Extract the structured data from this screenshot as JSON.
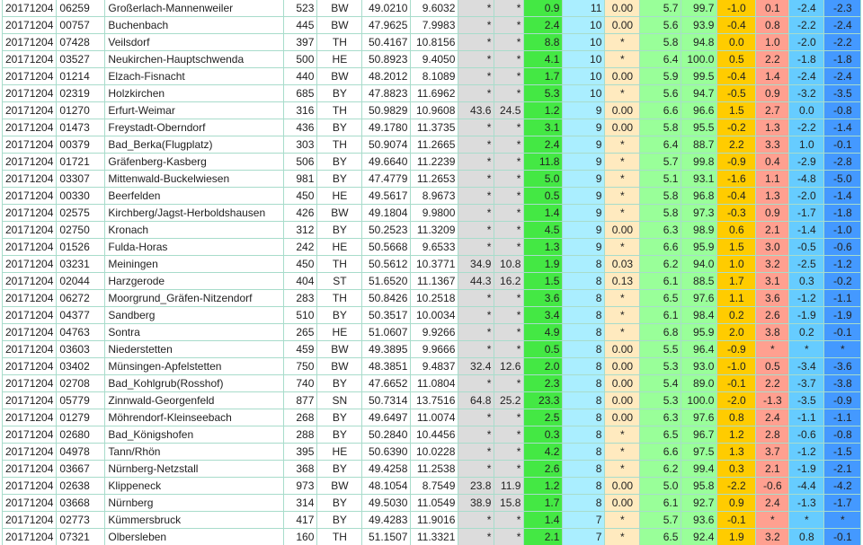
{
  "colors": {
    "gray": "#dcdcdc",
    "green": "#44e844",
    "lightblue": "#aaeeff",
    "yellow": "#ffeabf",
    "lightgreen": "#99ff99",
    "orange": "#ffcc00",
    "salmon": "#ffa090",
    "blue1": "#66ccff",
    "blue2": "#4499ff",
    "border": "#a8dccb"
  },
  "rows": [
    [
      "20171204",
      "06259",
      "Großerlach-Mannenweiler",
      "523",
      "BW",
      "49.0210",
      "9.6032",
      "*",
      "*",
      "0.9",
      "11",
      "0.00",
      "5.7",
      "99.7",
      "-1.0",
      "0.1",
      "-2.4",
      "-2.3"
    ],
    [
      "20171204",
      "00757",
      "Buchenbach",
      "445",
      "BW",
      "47.9625",
      "7.9983",
      "*",
      "*",
      "2.4",
      "10",
      "0.00",
      "5.6",
      "93.9",
      "-0.4",
      "0.8",
      "-2.2",
      "-2.4"
    ],
    [
      "20171204",
      "07428",
      "Veilsdorf",
      "397",
      "TH",
      "50.4167",
      "10.8156",
      "*",
      "*",
      "8.8",
      "10",
      "*",
      "5.8",
      "94.8",
      "0.0",
      "1.0",
      "-2.0",
      "-2.2"
    ],
    [
      "20171204",
      "03527",
      "Neukirchen-Hauptschwenda",
      "500",
      "HE",
      "50.8923",
      "9.4050",
      "*",
      "*",
      "4.1",
      "10",
      "*",
      "6.4",
      "100.0",
      "0.5",
      "2.2",
      "-1.8",
      "-1.8"
    ],
    [
      "20171204",
      "01214",
      "Elzach-Fisnacht",
      "440",
      "BW",
      "48.2012",
      "8.1089",
      "*",
      "*",
      "1.7",
      "10",
      "0.00",
      "5.9",
      "99.5",
      "-0.4",
      "1.4",
      "-2.4",
      "-2.4"
    ],
    [
      "20171204",
      "02319",
      "Holzkirchen",
      "685",
      "BY",
      "47.8823",
      "11.6962",
      "*",
      "*",
      "5.3",
      "10",
      "*",
      "5.6",
      "94.7",
      "-0.5",
      "0.9",
      "-3.2",
      "-3.5"
    ],
    [
      "20171204",
      "01270",
      "Erfurt-Weimar",
      "316",
      "TH",
      "50.9829",
      "10.9608",
      "43.6",
      "24.5",
      "1.2",
      "9",
      "0.00",
      "6.6",
      "96.6",
      "1.5",
      "2.7",
      "0.0",
      "-0.8"
    ],
    [
      "20171204",
      "01473",
      "Freystadt-Oberndorf",
      "436",
      "BY",
      "49.1780",
      "11.3735",
      "*",
      "*",
      "3.1",
      "9",
      "0.00",
      "5.8",
      "95.5",
      "-0.2",
      "1.3",
      "-2.2",
      "-1.4"
    ],
    [
      "20171204",
      "00379",
      "Bad_Berka(Flugplatz)",
      "303",
      "TH",
      "50.9074",
      "11.2665",
      "*",
      "*",
      "2.4",
      "9",
      "*",
      "6.4",
      "88.7",
      "2.2",
      "3.3",
      "1.0",
      "-0.1"
    ],
    [
      "20171204",
      "01721",
      "Gräfenberg-Kasberg",
      "506",
      "BY",
      "49.6640",
      "11.2239",
      "*",
      "*",
      "11.8",
      "9",
      "*",
      "5.7",
      "99.8",
      "-0.9",
      "0.4",
      "-2.9",
      "-2.8"
    ],
    [
      "20171204",
      "03307",
      "Mittenwald-Buckelwiesen",
      "981",
      "BY",
      "47.4779",
      "11.2653",
      "*",
      "*",
      "5.0",
      "9",
      "*",
      "5.1",
      "93.1",
      "-1.6",
      "1.1",
      "-4.8",
      "-5.0"
    ],
    [
      "20171204",
      "00330",
      "Beerfelden",
      "450",
      "HE",
      "49.5617",
      "8.9673",
      "*",
      "*",
      "0.5",
      "9",
      "*",
      "5.8",
      "96.8",
      "-0.4",
      "1.3",
      "-2.0",
      "-1.4"
    ],
    [
      "20171204",
      "02575",
      "Kirchberg/Jagst-Herboldshausen",
      "426",
      "BW",
      "49.1804",
      "9.9800",
      "*",
      "*",
      "1.4",
      "9",
      "*",
      "5.8",
      "97.3",
      "-0.3",
      "0.9",
      "-1.7",
      "-1.8"
    ],
    [
      "20171204",
      "02750",
      "Kronach",
      "312",
      "BY",
      "50.2523",
      "11.3209",
      "*",
      "*",
      "4.5",
      "9",
      "0.00",
      "6.3",
      "98.9",
      "0.6",
      "2.1",
      "-1.4",
      "-1.0"
    ],
    [
      "20171204",
      "01526",
      "Fulda-Horas",
      "242",
      "HE",
      "50.5668",
      "9.6533",
      "*",
      "*",
      "1.3",
      "9",
      "*",
      "6.6",
      "95.9",
      "1.5",
      "3.0",
      "-0.5",
      "-0.6"
    ],
    [
      "20171204",
      "03231",
      "Meiningen",
      "450",
      "TH",
      "50.5612",
      "10.3771",
      "34.9",
      "10.8",
      "1.9",
      "8",
      "0.03",
      "6.2",
      "94.0",
      "1.0",
      "3.2",
      "-2.5",
      "-1.2"
    ],
    [
      "20171204",
      "02044",
      "Harzgerode",
      "404",
      "ST",
      "51.6520",
      "11.1367",
      "44.3",
      "16.2",
      "1.5",
      "8",
      "0.13",
      "6.1",
      "88.5",
      "1.7",
      "3.1",
      "0.3",
      "-0.2"
    ],
    [
      "20171204",
      "06272",
      "Moorgrund_Gräfen-Nitzendorf",
      "283",
      "TH",
      "50.8426",
      "10.2518",
      "*",
      "*",
      "3.6",
      "8",
      "*",
      "6.5",
      "97.6",
      "1.1",
      "3.6",
      "-1.2",
      "-1.1"
    ],
    [
      "20171204",
      "04377",
      "Sandberg",
      "510",
      "BY",
      "50.3517",
      "10.0034",
      "*",
      "*",
      "3.4",
      "8",
      "*",
      "6.1",
      "98.4",
      "0.2",
      "2.6",
      "-1.9",
      "-1.9"
    ],
    [
      "20171204",
      "04763",
      "Sontra",
      "265",
      "HE",
      "51.0607",
      "9.9266",
      "*",
      "*",
      "4.9",
      "8",
      "*",
      "6.8",
      "95.9",
      "2.0",
      "3.8",
      "0.2",
      "-0.1"
    ],
    [
      "20171204",
      "03603",
      "Niederstetten",
      "459",
      "BW",
      "49.3895",
      "9.9666",
      "*",
      "*",
      "0.5",
      "8",
      "0.00",
      "5.5",
      "96.4",
      "-0.9",
      "*",
      "*",
      "*"
    ],
    [
      "20171204",
      "03402",
      "Münsingen-Apfelstetten",
      "750",
      "BW",
      "48.3851",
      "9.4837",
      "32.4",
      "12.6",
      "2.0",
      "8",
      "0.00",
      "5.3",
      "93.0",
      "-1.0",
      "0.5",
      "-3.4",
      "-3.6"
    ],
    [
      "20171204",
      "02708",
      "Bad_Kohlgrub(Rosshof)",
      "740",
      "BY",
      "47.6652",
      "11.0804",
      "*",
      "*",
      "2.3",
      "8",
      "0.00",
      "5.4",
      "89.0",
      "-0.1",
      "2.2",
      "-3.7",
      "-3.8"
    ],
    [
      "20171204",
      "05779",
      "Zinnwald-Georgenfeld",
      "877",
      "SN",
      "50.7314",
      "13.7516",
      "64.8",
      "25.2",
      "23.3",
      "8",
      "0.00",
      "5.3",
      "100.0",
      "-2.0",
      "-1.3",
      "-3.5",
      "-0.9"
    ],
    [
      "20171204",
      "01279",
      "Möhrendorf-Kleinseebach",
      "268",
      "BY",
      "49.6497",
      "11.0074",
      "*",
      "*",
      "2.5",
      "8",
      "0.00",
      "6.3",
      "97.6",
      "0.8",
      "2.4",
      "-1.1",
      "-1.1"
    ],
    [
      "20171204",
      "02680",
      "Bad_Königshofen",
      "288",
      "BY",
      "50.2840",
      "10.4456",
      "*",
      "*",
      "0.3",
      "8",
      "*",
      "6.5",
      "96.7",
      "1.2",
      "2.8",
      "-0.6",
      "-0.8"
    ],
    [
      "20171204",
      "04978",
      "Tann/Rhön",
      "395",
      "HE",
      "50.6390",
      "10.0228",
      "*",
      "*",
      "4.2",
      "8",
      "*",
      "6.6",
      "97.5",
      "1.3",
      "3.7",
      "-1.2",
      "-1.5"
    ],
    [
      "20171204",
      "03667",
      "Nürnberg-Netzstall",
      "368",
      "BY",
      "49.4258",
      "11.2538",
      "*",
      "*",
      "2.6",
      "8",
      "*",
      "6.2",
      "99.4",
      "0.3",
      "2.1",
      "-1.9",
      "-2.1"
    ],
    [
      "20171204",
      "02638",
      "Klippeneck",
      "973",
      "BW",
      "48.1054",
      "8.7549",
      "23.8",
      "11.9",
      "1.2",
      "8",
      "0.00",
      "5.0",
      "95.8",
      "-2.2",
      "-0.6",
      "-4.4",
      "-4.2"
    ],
    [
      "20171204",
      "03668",
      "Nürnberg",
      "314",
      "BY",
      "49.5030",
      "11.0549",
      "38.9",
      "15.8",
      "1.7",
      "8",
      "0.00",
      "6.1",
      "92.7",
      "0.9",
      "2.4",
      "-1.3",
      "-1.7"
    ],
    [
      "20171204",
      "02773",
      "Kümmersbruck",
      "417",
      "BY",
      "49.4283",
      "11.9016",
      "*",
      "*",
      "1.4",
      "7",
      "*",
      "5.7",
      "93.6",
      "-0.1",
      "*",
      "*",
      "*"
    ],
    [
      "20171204",
      "07321",
      "Olbersleben",
      "160",
      "TH",
      "51.1507",
      "11.3321",
      "*",
      "*",
      "2.1",
      "7",
      "*",
      "6.5",
      "92.4",
      "1.9",
      "3.2",
      "0.8",
      "-0.1"
    ]
  ]
}
